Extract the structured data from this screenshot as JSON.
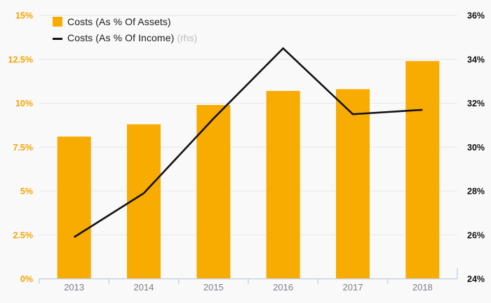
{
  "colors": {
    "background": "#f9f9f9",
    "bar": "#f8ab00",
    "line": "#121212",
    "gridline": "#e8e8e8",
    "axis_line": "#c9d2e2",
    "left_tick_label": "#f5a300",
    "right_tick_label": "#111111",
    "year_label": "#7b7f87",
    "legend_text": "#1d1d1d",
    "rhs_note": "#b9bcbf"
  },
  "legend": {
    "items": [
      {
        "label": "Costs (As % Of Assets)",
        "marker": "square"
      },
      {
        "label": "Costs (As % Of Income)",
        "marker": "line",
        "note": "(rhs)"
      }
    ]
  },
  "chart_data": {
    "type": "bar",
    "subtype": "combo-bar-line-dual-axis",
    "title": "",
    "categories": [
      "2013",
      "2014",
      "2015",
      "2016",
      "2017",
      "2018"
    ],
    "series": [
      {
        "name": "Costs (As % Of Assets)",
        "type": "bar",
        "axis": "left",
        "values": [
          8.1,
          8.8,
          9.9,
          10.7,
          10.8,
          12.4
        ]
      },
      {
        "name": "Costs (As % Of Income)",
        "type": "line",
        "axis": "right",
        "note": "(rhs)",
        "values": [
          25.9,
          27.9,
          31.3,
          34.5,
          31.5,
          31.7
        ]
      }
    ],
    "left_axis": {
      "min": 0,
      "max": 15,
      "tick_values": [
        0,
        2.5,
        5,
        7.5,
        10,
        12.5,
        15
      ],
      "tick_labels": [
        "0%",
        "2.5%",
        "5%",
        "7.5%",
        "10%",
        "12.5%",
        "15%"
      ]
    },
    "right_axis": {
      "min": 24,
      "max": 36,
      "tick_values": [
        24,
        26,
        28,
        30,
        32,
        34,
        36
      ],
      "tick_labels": [
        "24%",
        "26%",
        "28%",
        "30%",
        "32%",
        "34%",
        "36%"
      ]
    },
    "grid": true,
    "legend_position": "top-left"
  }
}
